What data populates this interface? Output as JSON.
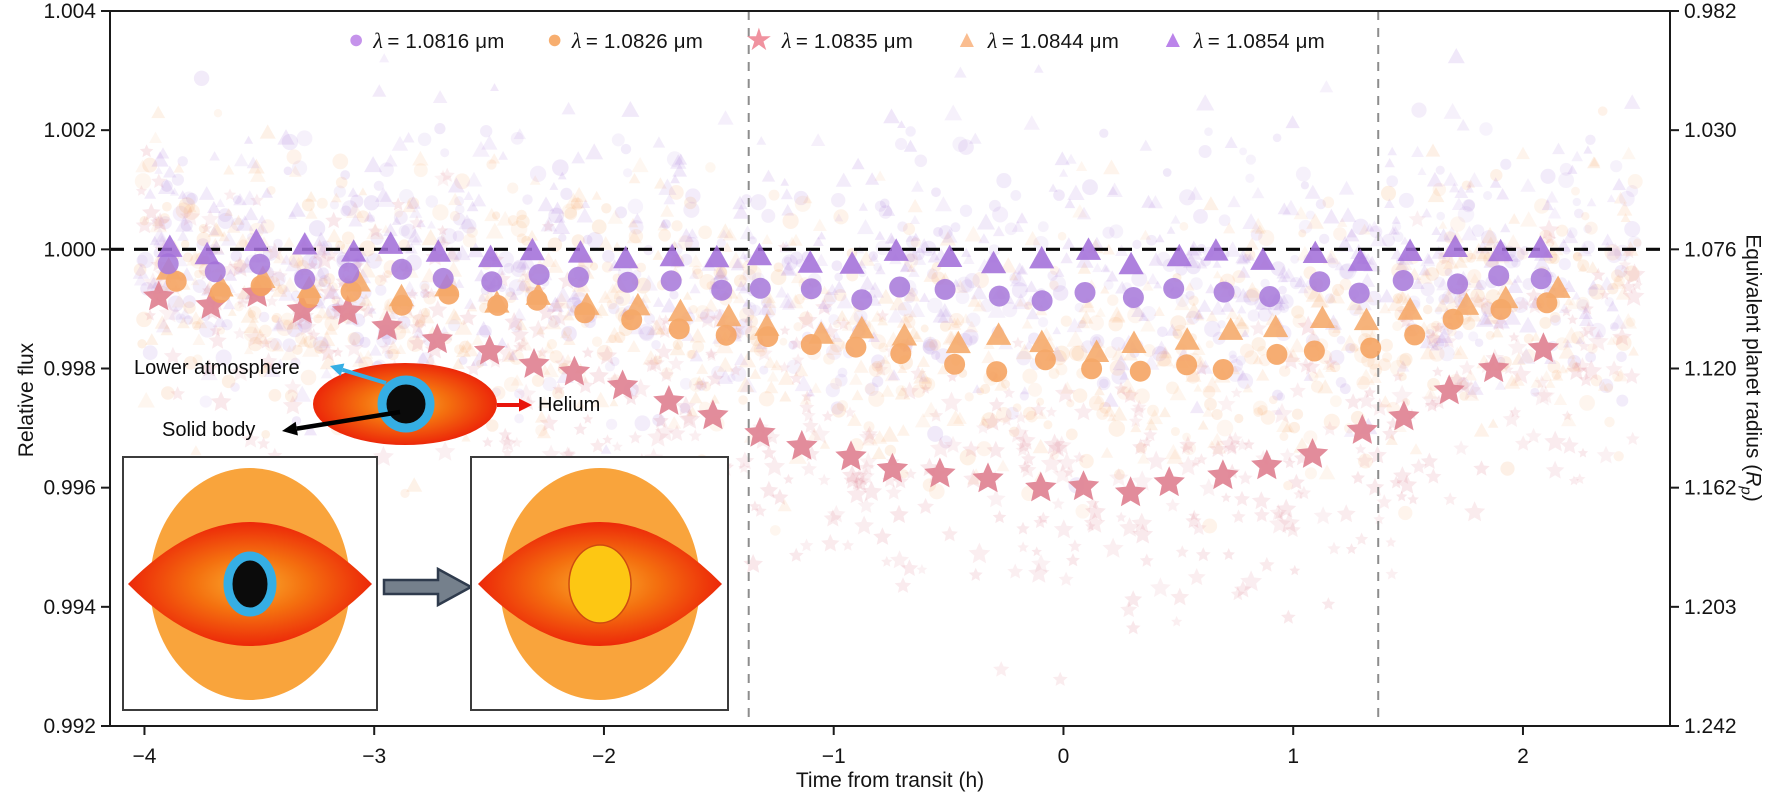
{
  "legend": {
    "items": [
      {
        "symbol": "λ",
        "text": "= 1.0816 μm",
        "marker": "circle",
        "color": "#C593EB",
        "wavelength_um": "1.0816"
      },
      {
        "symbol": "λ",
        "text": "= 1.0826 μm",
        "marker": "circle",
        "color": "#F7AE6F",
        "wavelength_um": "1.0826"
      },
      {
        "symbol": "λ",
        "text": "= 1.0835 μm",
        "marker": "star",
        "color": "#F0929F",
        "wavelength_um": "1.0835"
      },
      {
        "symbol": "λ",
        "text": "= 1.0844 μm",
        "marker": "triangle",
        "color": "#FABD90",
        "wavelength_um": "1.0844"
      },
      {
        "symbol": "λ",
        "text": "= 1.0854 μm",
        "marker": "triangle",
        "color": "#BB84EA",
        "wavelength_um": "1.0854"
      }
    ]
  },
  "axes": {
    "left": {
      "title": "Relative flux"
    },
    "right": {
      "title_pre": "Equivalent planet radius (",
      "title_var": "R",
      "title_sub": "p",
      "title_post": ")"
    },
    "bottom": {
      "title": "Time from transit (h)"
    }
  },
  "annotations": {
    "lower_atmosphere": "Lower atmosphere",
    "helium": "Helium",
    "solid_body": "Solid body"
  },
  "inset": {
    "colors": {
      "orange_envelope": "#F9A43C",
      "red_lens_edge": "#EA1207",
      "orange_glow": "#F4700F",
      "cyan_ring": "#35AEE4",
      "black_core": "#0b0b0b",
      "yellow_core": "#FDC713",
      "box_border": "#3c3c3c",
      "big_arrow_fill": "#75808C",
      "big_arrow_outline": "#2F3B4D",
      "helium_arrow": "#E8150C",
      "atmosphere_arrow": "#35AEE4",
      "solid_body_arrow": "#000000"
    }
  },
  "chart_data": {
    "type": "scatter",
    "title": "",
    "xlabel": "Time from transit (h)",
    "ylabel_left": "Relative flux",
    "ylabel_right": "Equivalent planet radius (Rp)",
    "xlim": [
      -4.15,
      2.64
    ],
    "ylim_left": [
      0.992,
      1.004
    ],
    "grid": false,
    "legend_position": "top",
    "left_ticks": [
      1.004,
      1.002,
      1.0,
      0.998,
      0.996,
      0.994,
      0.992
    ],
    "left_tick_labels": [
      "1.004",
      "1.002",
      "1.000",
      "0.998",
      "0.996",
      "0.994",
      "0.992"
    ],
    "right_tick_labels": [
      "0.982",
      "1.030",
      "1.076",
      "1.120",
      "1.162",
      "1.203",
      "1.242"
    ],
    "x_ticks": [
      -4,
      -3,
      -2,
      -1,
      0,
      1,
      2
    ],
    "x_tick_labels": [
      "−4",
      "−3",
      "−2",
      "−1",
      "0",
      "1",
      "2"
    ],
    "reference_flux_line": 1.0,
    "transit_contact_lines_h": [
      -1.37,
      1.37
    ],
    "bin_times_h": [
      -3.9,
      -3.7,
      -3.5,
      -3.3,
      -3.1,
      -2.9,
      -2.7,
      -2.5,
      -2.3,
      -2.1,
      -1.9,
      -1.7,
      -1.5,
      -1.3,
      -1.1,
      -0.9,
      -0.7,
      -0.5,
      -0.3,
      -0.1,
      0.1,
      0.3,
      0.5,
      0.7,
      0.9,
      1.1,
      1.3,
      1.5,
      1.7,
      1.9,
      2.1
    ],
    "series": [
      {
        "name": "λ = 1.0816 μm",
        "marker": "circle",
        "color": "#A87BDB",
        "binned_flux": [
          0.9998,
          0.9996,
          0.9997,
          0.9995,
          0.9996,
          0.9997,
          0.9995,
          0.9994,
          0.9996,
          0.9995,
          0.9994,
          0.9995,
          0.9993,
          0.9994,
          0.9993,
          0.9992,
          0.9994,
          0.9993,
          0.9992,
          0.9991,
          0.9993,
          0.9992,
          0.9994,
          0.9993,
          0.9992,
          0.9994,
          0.9993,
          0.9995,
          0.9994,
          0.9996,
          0.9995
        ]
      },
      {
        "name": "λ = 1.0826 μm",
        "marker": "circle",
        "color": "#F5A25E",
        "binned_flux": [
          0.9995,
          0.9993,
          0.9994,
          0.9992,
          0.9993,
          0.9991,
          0.9992,
          0.999,
          0.9991,
          0.9989,
          0.9988,
          0.9987,
          0.9986,
          0.9985,
          0.9984,
          0.9983,
          0.9982,
          0.9981,
          0.998,
          0.9981,
          0.998,
          0.9979,
          0.9981,
          0.998,
          0.9982,
          0.9983,
          0.9984,
          0.9986,
          0.9988,
          0.999,
          0.9991
        ]
      },
      {
        "name": "λ = 1.0835 μm",
        "marker": "star",
        "color": "#DF8292",
        "binned_flux": [
          0.9992,
          0.9991,
          0.9992,
          0.999,
          0.9989,
          0.9987,
          0.9985,
          0.9983,
          0.9981,
          0.9979,
          0.9977,
          0.9974,
          0.9972,
          0.9969,
          0.9967,
          0.9965,
          0.9963,
          0.9962,
          0.9961,
          0.996,
          0.996,
          0.9959,
          0.9961,
          0.9962,
          0.9964,
          0.9966,
          0.9969,
          0.9972,
          0.9976,
          0.998,
          0.9983
        ]
      },
      {
        "name": "λ = 1.0844 μm",
        "marker": "triangle",
        "color": "#F5A869",
        "binned_flux": [
          0.9996,
          0.9994,
          0.9995,
          0.9993,
          0.9994,
          0.9992,
          0.9993,
          0.9991,
          0.9992,
          0.999,
          0.999,
          0.9989,
          0.9988,
          0.9987,
          0.9986,
          0.9986,
          0.9985,
          0.9984,
          0.9985,
          0.9984,
          0.9983,
          0.9984,
          0.9985,
          0.9986,
          0.9987,
          0.9988,
          0.9988,
          0.9989,
          0.999,
          0.9992,
          0.9993
        ]
      },
      {
        "name": "λ = 1.0854 μm",
        "marker": "triangle",
        "color": "#A36FD9",
        "binned_flux": [
          1.0,
          0.9999,
          1.0001,
          1.0,
          0.9999,
          1.0,
          0.9999,
          0.9998,
          1.0,
          0.9999,
          0.9998,
          0.9999,
          0.9998,
          0.9999,
          0.9998,
          0.9997,
          0.9999,
          0.9998,
          0.9997,
          0.9998,
          0.9999,
          0.9997,
          0.9998,
          0.9999,
          0.9998,
          0.9999,
          0.9998,
          0.9999,
          1.0,
          0.9999,
          1.0
        ]
      }
    ],
    "background_scatter": {
      "points_per_series": 520,
      "noise_sigma_flux": 0.00115,
      "noise_clamp_sigma": 2.8,
      "x_range_h": [
        -4.02,
        2.5
      ],
      "opacity_circles": 0.13,
      "opacity_stars": 0.15,
      "seed": 11
    }
  }
}
